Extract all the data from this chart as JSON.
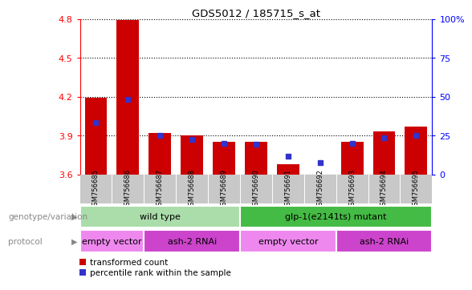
{
  "title": "GDS5012 / 185715_s_at",
  "samples": [
    "GSM756685",
    "GSM756686",
    "GSM756687",
    "GSM756688",
    "GSM756689",
    "GSM756690",
    "GSM756691",
    "GSM756692",
    "GSM756693",
    "GSM756694",
    "GSM756695"
  ],
  "red_values": [
    4.19,
    4.79,
    3.92,
    3.9,
    3.85,
    3.85,
    3.68,
    3.6,
    3.85,
    3.93,
    3.97
  ],
  "blue_values": [
    4.0,
    4.18,
    3.9,
    3.87,
    3.84,
    3.83,
    3.74,
    3.69,
    3.84,
    3.88,
    3.9
  ],
  "ylim_left": [
    3.6,
    4.8
  ],
  "ylim_right": [
    0,
    100
  ],
  "yticks_left": [
    3.6,
    3.9,
    4.2,
    4.5,
    4.8
  ],
  "yticks_right": [
    0,
    25,
    50,
    75,
    100
  ],
  "ytick_labels_right": [
    "0",
    "25",
    "50",
    "75",
    "100%"
  ],
  "bar_color": "#cc0000",
  "blue_color": "#3333cc",
  "genotype_groups": [
    {
      "label": "wild type",
      "start": 0,
      "end": 4,
      "color": "#aaddaa"
    },
    {
      "label": "glp-1(e2141ts) mutant",
      "start": 5,
      "end": 10,
      "color": "#44bb44"
    }
  ],
  "protocol_groups": [
    {
      "label": "empty vector",
      "start": 0,
      "end": 1,
      "color": "#ee88ee"
    },
    {
      "label": "ash-2 RNAi",
      "start": 2,
      "end": 4,
      "color": "#cc44cc"
    },
    {
      "label": "empty vector",
      "start": 5,
      "end": 7,
      "color": "#ee88ee"
    },
    {
      "label": "ash-2 RNAi",
      "start": 8,
      "end": 10,
      "color": "#cc44cc"
    }
  ],
  "legend_red": "transformed count",
  "legend_blue": "percentile rank within the sample",
  "label_genotype": "genotype/variation",
  "label_protocol": "protocol",
  "bar_width": 0.7,
  "label_color": "#888888",
  "sample_label_bg": "#c8c8c8",
  "gap_color": "#ffffff"
}
